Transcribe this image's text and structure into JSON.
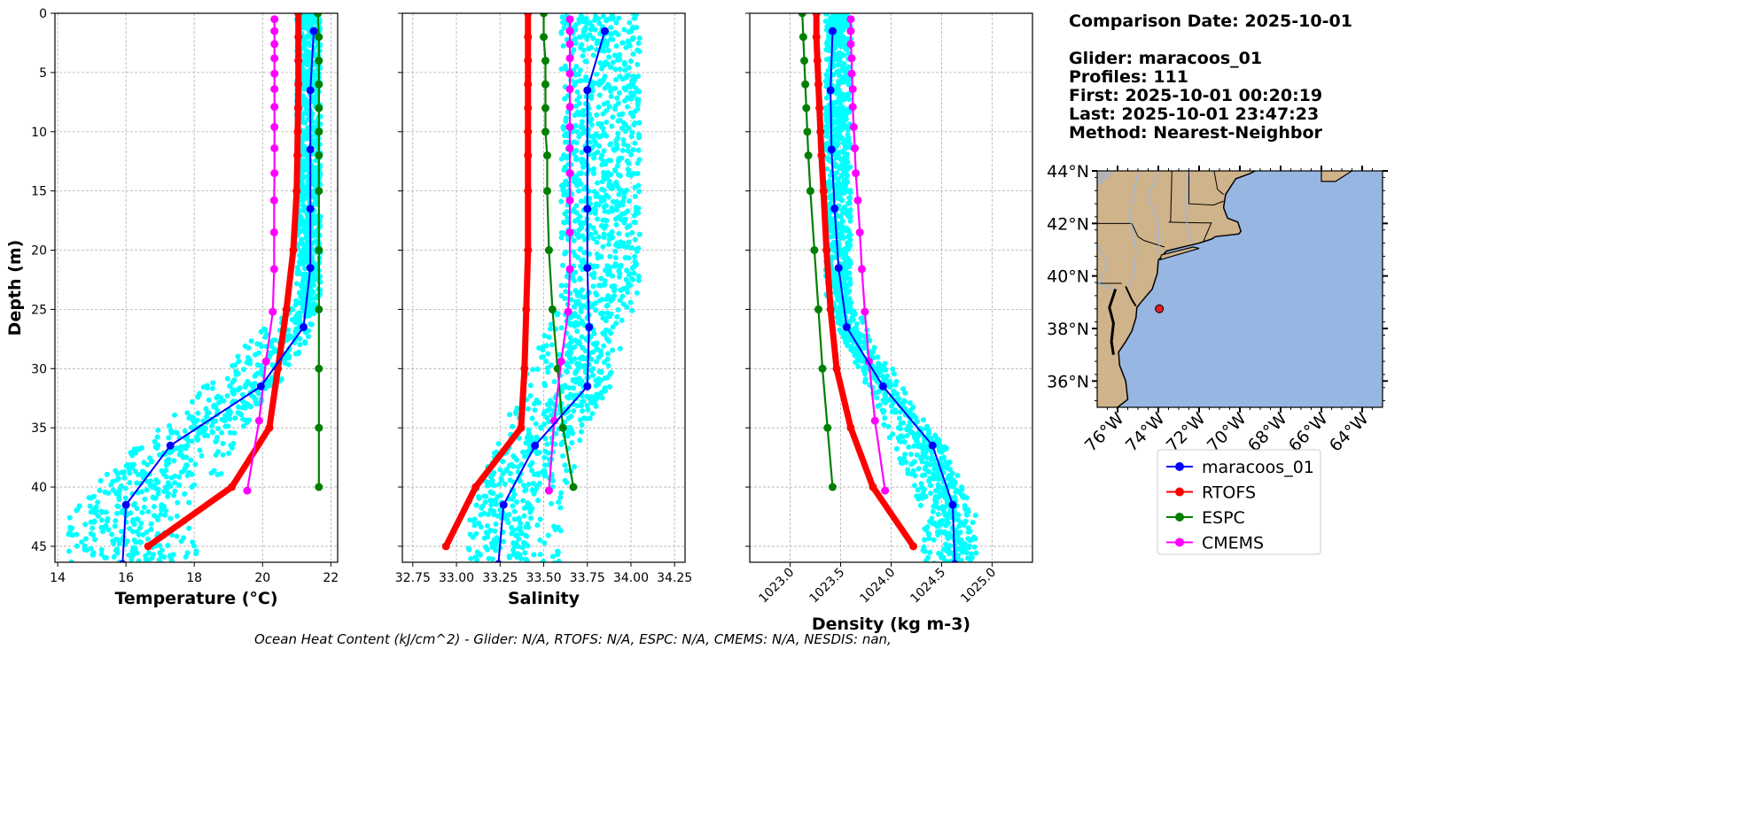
{
  "info": {
    "comparison_date": "Comparison Date: 2025-10-01",
    "glider": "Glider: maracoos_01",
    "profiles": "Profiles: 111",
    "first": "First: 2025-10-01 00:20:19",
    "last": "Last: 2025-10-01 23:47:23",
    "method": "Method: Nearest-Neighbor"
  },
  "footer": "Ocean Heat Content (kJ/cm^2) - Glider: N/A,  RTOFS: N/A,  ESPC: N/A,  CMEMS: N/A,  NESDIS: nan,",
  "colors": {
    "glider": "#0000ff",
    "rtofs": "#ff0000",
    "espc": "#008000",
    "cmems": "#ff00ff",
    "raw": "#00ffff",
    "ocean": "#97b6e1",
    "land": "#cfb38a"
  },
  "legend": [
    "maracoos_01",
    "RTOFS",
    "ESPC",
    "CMEMS"
  ],
  "chart_data": [
    {
      "type": "line",
      "xlabel": "Temperature (°C)",
      "ylabel": "Depth (m)",
      "xlim": [
        13.92,
        22.2
      ],
      "ylim": [
        46.35,
        0
      ],
      "xticks": [
        "14",
        "16",
        "18",
        "20",
        "22"
      ],
      "xtick_values": [
        14,
        16,
        18,
        20,
        22
      ],
      "yticks": [
        "0",
        "5",
        "10",
        "15",
        "20",
        "25",
        "30",
        "35",
        "40",
        "45"
      ],
      "ytick_values": [
        0,
        5,
        10,
        15,
        20,
        25,
        30,
        35,
        40,
        45
      ],
      "grid": true,
      "raw_scatter": {
        "series": "glider raw",
        "upper_mixed_range": [
          21.0,
          21.7
        ],
        "deep_range": [
          14.3,
          18.2
        ]
      },
      "series": [
        {
          "name": "maracoos_01",
          "depth": [
            1.5,
            6.5,
            11.5,
            16.5,
            21.5,
            26.5,
            31.5,
            36.5,
            41.5,
            46.5
          ],
          "values": [
            21.5,
            21.4,
            21.4,
            21.4,
            21.4,
            21.2,
            19.95,
            17.3,
            16.0,
            15.9
          ]
        },
        {
          "name": "RTOFS",
          "depth": [
            0,
            2,
            4,
            6,
            8,
            10,
            12,
            15,
            20,
            25,
            30,
            35,
            40,
            45
          ],
          "values": [
            21.05,
            21.05,
            21.05,
            21.05,
            21.04,
            21.03,
            21.02,
            21.0,
            20.9,
            20.7,
            20.45,
            20.2,
            19.1,
            16.65
          ]
        },
        {
          "name": "ESPC",
          "depth": [
            0,
            2,
            4,
            6,
            8,
            10,
            12,
            15,
            20,
            25,
            30,
            35,
            40
          ],
          "values": [
            21.62,
            21.65,
            21.65,
            21.65,
            21.65,
            21.65,
            21.65,
            21.65,
            21.65,
            21.65,
            21.65,
            21.65,
            21.65
          ]
        },
        {
          "name": "CMEMS",
          "depth": [
            0.5,
            1.5,
            2.6,
            3.8,
            5.1,
            6.4,
            7.9,
            9.6,
            11.4,
            13.5,
            15.8,
            18.5,
            21.6,
            25.2,
            29.4,
            34.4,
            40.3
          ],
          "values": [
            20.35,
            20.35,
            20.35,
            20.35,
            20.35,
            20.35,
            20.35,
            20.35,
            20.35,
            20.35,
            20.34,
            20.34,
            20.34,
            20.3,
            20.1,
            19.9,
            19.55
          ]
        }
      ]
    },
    {
      "type": "line",
      "xlabel": "Salinity",
      "ylabel": "",
      "xlim": [
        32.69,
        34.31
      ],
      "ylim": [
        46.35,
        0
      ],
      "xticks": [
        "32.75",
        "33.00",
        "33.25",
        "33.50",
        "33.75",
        "34.00",
        "34.25"
      ],
      "xtick_values": [
        32.75,
        33.0,
        33.25,
        33.5,
        33.75,
        34.0,
        34.25
      ],
      "grid": true,
      "raw_scatter": {
        "series": "glider raw",
        "upper_mixed_range": [
          33.6,
          34.05
        ],
        "deep_range": [
          33.05,
          33.6
        ]
      },
      "series": [
        {
          "name": "maracoos_01",
          "depth": [
            1.5,
            6.5,
            11.5,
            16.5,
            21.5,
            26.5,
            31.5,
            36.5,
            41.5,
            46.5
          ],
          "values": [
            33.85,
            33.75,
            33.75,
            33.75,
            33.75,
            33.76,
            33.75,
            33.45,
            33.27,
            33.24
          ]
        },
        {
          "name": "RTOFS",
          "depth": [
            0,
            2,
            4,
            6,
            8,
            10,
            12,
            15,
            20,
            25,
            30,
            35,
            40,
            45
          ],
          "values": [
            33.41,
            33.41,
            33.41,
            33.41,
            33.41,
            33.41,
            33.41,
            33.41,
            33.41,
            33.4,
            33.39,
            33.37,
            33.11,
            32.94
          ]
        },
        {
          "name": "ESPC",
          "depth": [
            0,
            2,
            4,
            6,
            8,
            10,
            12,
            15,
            20,
            25,
            30,
            35,
            40
          ],
          "values": [
            33.5,
            33.5,
            33.51,
            33.51,
            33.51,
            33.51,
            33.52,
            33.52,
            33.53,
            33.55,
            33.58,
            33.61,
            33.67
          ]
        },
        {
          "name": "CMEMS",
          "depth": [
            0.5,
            1.5,
            2.6,
            3.8,
            5.1,
            6.4,
            7.9,
            9.6,
            11.4,
            13.5,
            15.8,
            18.5,
            21.6,
            25.2,
            29.4,
            34.4,
            40.3
          ],
          "values": [
            33.65,
            33.65,
            33.65,
            33.65,
            33.65,
            33.65,
            33.65,
            33.65,
            33.65,
            33.65,
            33.65,
            33.65,
            33.65,
            33.64,
            33.6,
            33.56,
            33.53
          ]
        }
      ]
    },
    {
      "type": "line",
      "xlabel": "Density (kg m-3)",
      "ylabel": "",
      "xlim": [
        1022.6,
        1025.4
      ],
      "ylim": [
        46.35,
        0
      ],
      "xticks": [
        "1023.0",
        "1023.5",
        "1024.0",
        "1024.5",
        "1025.0"
      ],
      "xtick_values": [
        1023.0,
        1023.5,
        1024.0,
        1024.5,
        1025.0
      ],
      "grid": true,
      "raw_scatter": {
        "series": "glider raw",
        "upper_mixed_range": [
          1023.35,
          1023.6
        ],
        "deep_range": [
          1024.3,
          1024.85
        ]
      },
      "series": [
        {
          "name": "maracoos_01",
          "depth": [
            1.5,
            6.5,
            11.5,
            16.5,
            21.5,
            26.5,
            31.5,
            36.5,
            41.5,
            46.5
          ],
          "values": [
            1023.42,
            1023.4,
            1023.41,
            1023.44,
            1023.48,
            1023.56,
            1023.92,
            1024.41,
            1024.61,
            1024.63
          ]
        },
        {
          "name": "RTOFS",
          "depth": [
            0,
            2,
            4,
            6,
            8,
            10,
            12,
            15,
            20,
            25,
            30,
            35,
            40,
            45
          ],
          "values": [
            1023.26,
            1023.26,
            1023.27,
            1023.28,
            1023.29,
            1023.3,
            1023.31,
            1023.33,
            1023.36,
            1023.4,
            1023.46,
            1023.6,
            1023.82,
            1024.22
          ]
        },
        {
          "name": "ESPC",
          "depth": [
            0,
            2,
            4,
            6,
            8,
            10,
            12,
            15,
            20,
            25,
            30,
            35,
            40
          ],
          "values": [
            1023.12,
            1023.13,
            1023.14,
            1023.15,
            1023.16,
            1023.17,
            1023.18,
            1023.2,
            1023.24,
            1023.28,
            1023.32,
            1023.37,
            1023.42
          ]
        },
        {
          "name": "CMEMS",
          "depth": [
            0.5,
            1.5,
            2.6,
            3.8,
            5.1,
            6.4,
            7.9,
            9.6,
            11.4,
            13.5,
            15.8,
            18.5,
            21.6,
            25.2,
            29.4,
            34.4,
            40.3
          ],
          "values": [
            1023.6,
            1023.6,
            1023.6,
            1023.61,
            1023.61,
            1023.62,
            1023.62,
            1023.63,
            1023.64,
            1023.65,
            1023.67,
            1023.69,
            1023.71,
            1023.74,
            1023.78,
            1023.84,
            1023.94
          ]
        }
      ]
    }
  ],
  "map": {
    "lat_ticks": [
      "36°N",
      "38°N",
      "40°N",
      "42°N",
      "44°N"
    ],
    "lat_values": [
      36,
      38,
      40,
      42,
      44
    ],
    "lon_ticks": [
      "76°W",
      "74°W",
      "72°W",
      "70°W",
      "68°W",
      "66°W",
      "64°W"
    ],
    "lon_values": [
      -76,
      -74,
      -72,
      -70,
      -68,
      -66,
      -64
    ],
    "extent": {
      "lon": [
        -77,
        -63
      ],
      "lat": [
        35,
        44
      ]
    },
    "glider_position": {
      "lon": -73.95,
      "lat": 38.75
    }
  }
}
